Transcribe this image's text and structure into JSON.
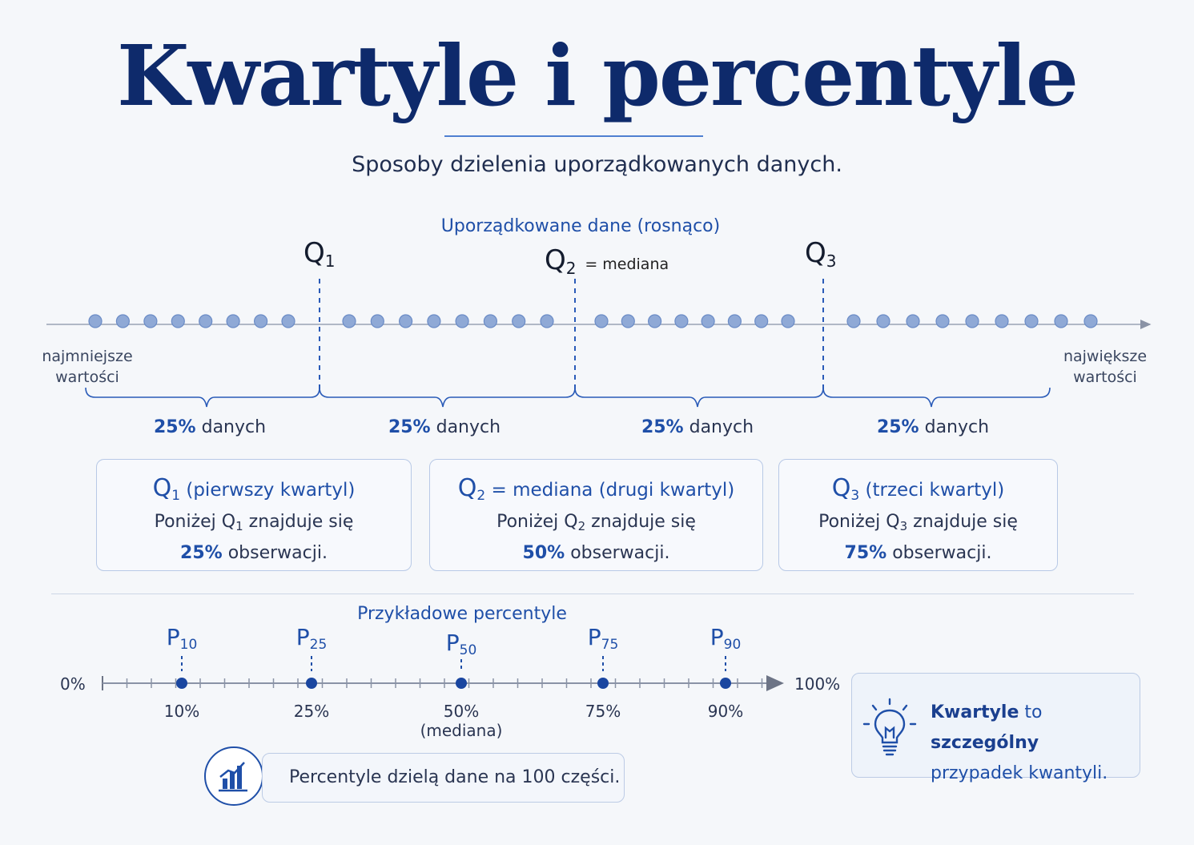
{
  "title": "Kwartyle i percentyle",
  "subtitle": "Sposoby dzielenia uporządkowanych danych.",
  "quartiles_section": {
    "label": "Uporządkowane dane (rosnąco)",
    "q1": {
      "q": "Q",
      "sub": "1"
    },
    "q2": {
      "q": "Q",
      "sub": "2",
      "eq": "= mediana"
    },
    "q3": {
      "q": "Q",
      "sub": "3"
    },
    "min_label": [
      "najmniejsze",
      "wartości"
    ],
    "max_label": [
      "największe",
      "wartości"
    ],
    "segments": [
      {
        "pct": "25%",
        "text": "danych"
      },
      {
        "pct": "25%",
        "text": "danych"
      },
      {
        "pct": "25%",
        "text": "danych"
      },
      {
        "pct": "25%",
        "text": "danych"
      }
    ],
    "points_per_group": [
      8,
      8,
      8,
      9
    ]
  },
  "cards": [
    {
      "q": "Q",
      "sub": "1",
      "title": " (pierwszy kwartyl)",
      "line1_pre": "Poniżej Q",
      "line1_sub": "1",
      "line1_post": " znajduje się",
      "pct": "25%",
      "line2": " obserwacji."
    },
    {
      "q": "Q",
      "sub": "2",
      "title": "= mediana (drugi kwartyl)",
      "line1_pre": "Poniżej Q",
      "line1_sub": "2",
      "line1_post": " znajduje się",
      "pct": "50%",
      "line2": " obserwacji."
    },
    {
      "q": "Q",
      "sub": "3",
      "title": " (trzeci kwartyl)",
      "line1_pre": "Poniżej Q",
      "line1_sub": "3",
      "line1_post": " znajduje się",
      "pct": "75%",
      "line2": " obserwacji."
    }
  ],
  "percentiles_section": {
    "label": "Przykładowe percentyle",
    "axis_start": "0%",
    "axis_end": "100%",
    "markers": [
      {
        "p": "P",
        "sub": "10",
        "value": 10,
        "label": "10%",
        "extra": ""
      },
      {
        "p": "P",
        "sub": "25",
        "value": 25,
        "label": "25%",
        "extra": ""
      },
      {
        "p": "P",
        "sub": "50",
        "value": 50,
        "label": "50%",
        "extra": "(mediana)"
      },
      {
        "p": "P",
        "sub": "75",
        "value": 75,
        "label": "75%",
        "extra": ""
      },
      {
        "p": "P",
        "sub": "90",
        "value": 90,
        "label": "90%",
        "extra": ""
      }
    ],
    "note_pre": "Percentyle dzielą dane na ",
    "note_num": "100",
    "note_post": " części.",
    "note_icon": "bar-chart-icon"
  },
  "tip": {
    "icon": "lightbulb-icon",
    "bold1": "Kwartyle",
    "text1": " to ",
    "bold2": "szczególny",
    "line2": "przypadek kwantyli."
  },
  "colors": {
    "primary": "#1f4fa8",
    "title": "#0e2a6b",
    "dot": "#8fa9d6"
  }
}
